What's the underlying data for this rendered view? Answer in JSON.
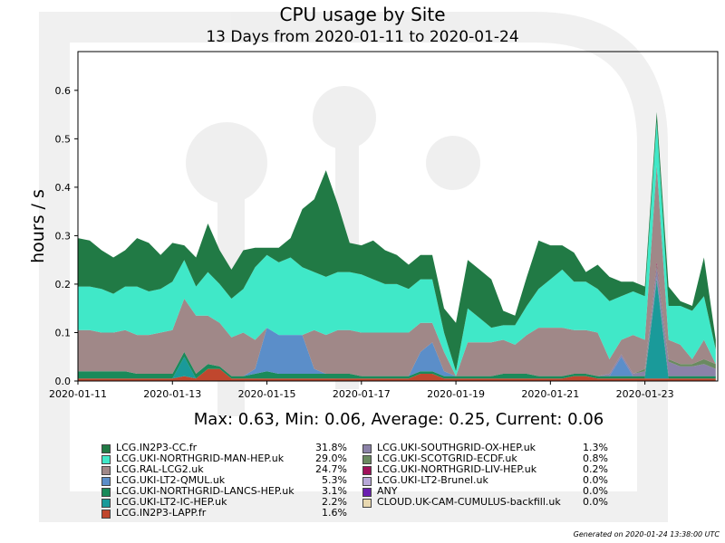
{
  "header": {
    "title": "CPU usage by Site",
    "subtitle": "13 Days from 2020-01-11 to 2020-01-24"
  },
  "stats_text": "Max: 0.63, Min: 0.06, Average: 0.25, Current: 0.06",
  "footer": "Generated on 2020-01-24 13:38:00 UTC",
  "chart_data": {
    "type": "area",
    "stacked": true,
    "title": "CPU usage by Site",
    "subtitle": "13 Days from 2020-01-11 to 2020-01-24",
    "ylabel": "hours / s",
    "xlabel": "",
    "ylim": [
      0,
      0.68
    ],
    "yticks": [
      "0.0",
      "0.1",
      "0.2",
      "0.3",
      "0.4",
      "0.5",
      "0.6"
    ],
    "xlim": [
      "2020-01-11 00:00",
      "2020-01-24 13:00"
    ],
    "xticks": [
      "2020-01-11",
      "2020-01-13",
      "2020-01-15",
      "2020-01-17",
      "2020-01-19",
      "2020-01-21",
      "2020-01-23"
    ],
    "grid": false,
    "legend_position": "bottom",
    "x": [
      "2020-01-11 00:00",
      "2020-01-11 06:00",
      "2020-01-11 12:00",
      "2020-01-11 18:00",
      "2020-01-12 00:00",
      "2020-01-12 06:00",
      "2020-01-12 12:00",
      "2020-01-12 18:00",
      "2020-01-13 00:00",
      "2020-01-13 06:00",
      "2020-01-13 12:00",
      "2020-01-13 18:00",
      "2020-01-14 00:00",
      "2020-01-14 06:00",
      "2020-01-14 12:00",
      "2020-01-14 18:00",
      "2020-01-15 00:00",
      "2020-01-15 06:00",
      "2020-01-15 12:00",
      "2020-01-15 18:00",
      "2020-01-16 00:00",
      "2020-01-16 06:00",
      "2020-01-16 12:00",
      "2020-01-16 18:00",
      "2020-01-17 00:00",
      "2020-01-17 06:00",
      "2020-01-17 12:00",
      "2020-01-17 18:00",
      "2020-01-18 00:00",
      "2020-01-18 06:00",
      "2020-01-18 12:00",
      "2020-01-18 18:00",
      "2020-01-19 00:00",
      "2020-01-19 06:00",
      "2020-01-19 12:00",
      "2020-01-19 18:00",
      "2020-01-20 00:00",
      "2020-01-20 06:00",
      "2020-01-20 12:00",
      "2020-01-20 18:00",
      "2020-01-21 00:00",
      "2020-01-21 06:00",
      "2020-01-21 12:00",
      "2020-01-21 18:00",
      "2020-01-22 00:00",
      "2020-01-22 06:00",
      "2020-01-22 12:00",
      "2020-01-22 18:00",
      "2020-01-23 00:00",
      "2020-01-23 06:00",
      "2020-01-23 12:00",
      "2020-01-23 18:00",
      "2020-01-24 00:00",
      "2020-01-24 06:00",
      "2020-01-24 12:00"
    ],
    "series": [
      {
        "name": "LCG.IN2P3-LAPP.fr",
        "color": "#c0472e",
        "percent": "1.6%",
        "values": [
          0.005,
          0.005,
          0.005,
          0.005,
          0.005,
          0.005,
          0.005,
          0.005,
          0.005,
          0.01,
          0.005,
          0.025,
          0.025,
          0.005,
          0.005,
          0.005,
          0.005,
          0.005,
          0.005,
          0.005,
          0.005,
          0.005,
          0.005,
          0.005,
          0.005,
          0.005,
          0.005,
          0.005,
          0.005,
          0.015,
          0.015,
          0.005,
          0.005,
          0.005,
          0.005,
          0.005,
          0.005,
          0.005,
          0.005,
          0.005,
          0.005,
          0.005,
          0.01,
          0.01,
          0.005,
          0.005,
          0.005,
          0.005,
          0.005,
          0.005,
          0.005,
          0.005,
          0.005,
          0.005,
          0.005
        ]
      },
      {
        "name": "LCG.UKI-LT2-IC-HEP.uk",
        "color": "#1a9a9a",
        "percent": "2.2%",
        "values": [
          0,
          0,
          0,
          0,
          0,
          0,
          0,
          0,
          0,
          0.04,
          0,
          0,
          0,
          0,
          0,
          0,
          0,
          0,
          0,
          0,
          0,
          0,
          0,
          0,
          0,
          0,
          0,
          0,
          0,
          0,
          0,
          0,
          0,
          0,
          0,
          0,
          0,
          0,
          0,
          0,
          0,
          0,
          0,
          0,
          0,
          0,
          0,
          0,
          0,
          0.2,
          0,
          0,
          0,
          0,
          0
        ]
      },
      {
        "name": "LCG.UKI-NORTHGRID-LANCS-HEP.uk",
        "color": "#1a8a5a",
        "percent": "3.1%",
        "values": [
          0.015,
          0.015,
          0.015,
          0.015,
          0.015,
          0.01,
          0.01,
          0.01,
          0.01,
          0.01,
          0.01,
          0.01,
          0.005,
          0.005,
          0.005,
          0.01,
          0.015,
          0.01,
          0.01,
          0.01,
          0.01,
          0.01,
          0.01,
          0.01,
          0.005,
          0.005,
          0.005,
          0.005,
          0.005,
          0.005,
          0.005,
          0.005,
          0.005,
          0.005,
          0.005,
          0.005,
          0.01,
          0.01,
          0.01,
          0.005,
          0.005,
          0.005,
          0.005,
          0.005,
          0.005,
          0.005,
          0.005,
          0.005,
          0.005,
          0.005,
          0.005,
          0.005,
          0.005,
          0.005,
          0.005
        ]
      },
      {
        "name": "LCG.UKI-LT2-QMUL.uk",
        "color": "#5b8ec9",
        "percent": "5.3%",
        "values": [
          0,
          0,
          0,
          0,
          0,
          0,
          0,
          0,
          0,
          0,
          0,
          0,
          0,
          0,
          0,
          0.01,
          0.09,
          0.08,
          0.08,
          0.08,
          0.01,
          0,
          0,
          0,
          0,
          0,
          0,
          0,
          0,
          0.04,
          0.06,
          0.01,
          0,
          0,
          0,
          0,
          0,
          0,
          0,
          0,
          0,
          0,
          0,
          0,
          0,
          0,
          0.04,
          0,
          0,
          0.005,
          0,
          0,
          0,
          0,
          0
        ]
      },
      {
        "name": "LCG.UKI-SOUTHGRID-OX-HEP.uk",
        "color": "#8b82a8",
        "percent": "1.3%",
        "values": [
          0,
          0,
          0,
          0,
          0,
          0,
          0,
          0,
          0,
          0,
          0,
          0,
          0,
          0,
          0,
          0,
          0,
          0,
          0,
          0,
          0,
          0,
          0,
          0,
          0,
          0,
          0,
          0,
          0,
          0,
          0,
          0,
          0,
          0,
          0,
          0,
          0,
          0,
          0,
          0,
          0,
          0,
          0,
          0,
          0,
          0.005,
          0.005,
          0.005,
          0.01,
          0.02,
          0.03,
          0.02,
          0.02,
          0.025,
          0.015
        ]
      },
      {
        "name": "LCG.UKI-SCOTGRID-ECDF.uk",
        "color": "#6a8a60",
        "percent": "0.8%",
        "values": [
          0,
          0,
          0,
          0,
          0,
          0,
          0,
          0,
          0,
          0,
          0,
          0,
          0,
          0,
          0,
          0,
          0,
          0,
          0,
          0,
          0,
          0,
          0,
          0,
          0,
          0,
          0,
          0,
          0,
          0,
          0,
          0,
          0,
          0,
          0,
          0,
          0,
          0,
          0,
          0,
          0,
          0,
          0,
          0,
          0,
          0,
          0,
          0,
          0.005,
          0.005,
          0.005,
          0.005,
          0.005,
          0.01,
          0.01
        ]
      },
      {
        "name": "LCG.UKI-NORTHGRID-LIV-HEP.uk",
        "color": "#a0105a",
        "percent": "0.2%",
        "values": [
          0,
          0,
          0,
          0,
          0,
          0,
          0,
          0,
          0,
          0,
          0,
          0,
          0,
          0,
          0,
          0,
          0,
          0,
          0,
          0,
          0,
          0,
          0,
          0,
          0,
          0,
          0,
          0,
          0,
          0,
          0,
          0,
          0,
          0,
          0,
          0,
          0,
          0,
          0,
          0,
          0,
          0,
          0,
          0,
          0,
          0,
          0,
          0,
          0,
          0.005,
          0,
          0,
          0,
          0,
          0
        ]
      },
      {
        "name": "LCG.UKI-LT2-Brunel.uk",
        "color": "#b8a8d8",
        "percent": "0.0%",
        "values": [
          0,
          0,
          0,
          0,
          0,
          0,
          0,
          0,
          0,
          0,
          0,
          0,
          0,
          0,
          0,
          0,
          0,
          0,
          0,
          0,
          0,
          0,
          0,
          0,
          0,
          0,
          0,
          0,
          0,
          0,
          0,
          0,
          0,
          0,
          0,
          0,
          0,
          0,
          0,
          0,
          0,
          0,
          0,
          0,
          0,
          0,
          0,
          0,
          0,
          0,
          0,
          0,
          0,
          0,
          0
        ]
      },
      {
        "name": "ANY",
        "color": "#6a1fb0",
        "percent": "0.0%",
        "values": [
          0,
          0,
          0,
          0,
          0,
          0,
          0,
          0,
          0,
          0,
          0,
          0,
          0,
          0,
          0,
          0,
          0,
          0,
          0,
          0,
          0,
          0,
          0,
          0,
          0,
          0,
          0,
          0,
          0,
          0,
          0,
          0,
          0,
          0,
          0,
          0,
          0,
          0,
          0,
          0,
          0,
          0,
          0,
          0,
          0,
          0,
          0,
          0,
          0,
          0,
          0,
          0,
          0,
          0,
          0
        ]
      },
      {
        "name": "CLOUD.UK-CAM-CUMULUS-backfill.uk",
        "color": "#e8d8b0",
        "percent": "0.0%",
        "values": [
          0,
          0,
          0,
          0,
          0,
          0,
          0,
          0,
          0,
          0,
          0,
          0,
          0,
          0,
          0,
          0,
          0,
          0,
          0,
          0,
          0,
          0,
          0,
          0,
          0,
          0,
          0,
          0,
          0,
          0,
          0,
          0,
          0,
          0,
          0,
          0,
          0,
          0,
          0,
          0,
          0,
          0,
          0,
          0,
          0,
          0,
          0,
          0,
          0,
          0,
          0,
          0,
          0,
          0,
          0
        ]
      },
      {
        "name": "LCG.RAL-LCG2.uk",
        "color": "#a08888",
        "percent": "24.7%",
        "values": [
          0.085,
          0.085,
          0.08,
          0.08,
          0.085,
          0.08,
          0.08,
          0.085,
          0.09,
          0.11,
          0.12,
          0.1,
          0.09,
          0.08,
          0.09,
          0.06,
          0,
          0,
          0,
          0,
          0.08,
          0.08,
          0.09,
          0.09,
          0.09,
          0.09,
          0.09,
          0.09,
          0.09,
          0.06,
          0.04,
          0.04,
          0,
          0.07,
          0.07,
          0.07,
          0.07,
          0.06,
          0.08,
          0.1,
          0.1,
          0.1,
          0.09,
          0.09,
          0.09,
          0.03,
          0.03,
          0.08,
          0.06,
          0.2,
          0.04,
          0.04,
          0.01,
          0.04,
          0
        ]
      },
      {
        "name": "LCG.UKI-NORTHGRID-MAN-HEP.uk",
        "color": "#40e8c8",
        "percent": "29.0%",
        "values": [
          0.09,
          0.09,
          0.09,
          0.08,
          0.09,
          0.1,
          0.09,
          0.09,
          0.1,
          0.08,
          0.06,
          0.09,
          0.08,
          0.08,
          0.09,
          0.15,
          0.15,
          0.15,
          0.16,
          0.14,
          0.12,
          0.12,
          0.12,
          0.12,
          0.12,
          0.11,
          0.1,
          0.1,
          0.09,
          0.09,
          0.09,
          0.04,
          0.01,
          0.07,
          0.05,
          0.03,
          0.03,
          0.04,
          0.06,
          0.08,
          0.1,
          0.12,
          0.1,
          0.1,
          0.09,
          0.12,
          0.09,
          0.09,
          0.09,
          0.09,
          0.07,
          0.08,
          0.1,
          0.09,
          0.03
        ]
      },
      {
        "name": "LCG.IN2P3-CC.fr",
        "color": "#217a45",
        "percent": "31.8%",
        "values": [
          0.1,
          0.095,
          0.08,
          0.075,
          0.075,
          0.1,
          0.1,
          0.07,
          0.08,
          0.03,
          0.06,
          0.1,
          0.07,
          0.06,
          0.08,
          0.04,
          0.015,
          0.03,
          0.04,
          0.12,
          0.15,
          0.22,
          0.14,
          0.06,
          0.06,
          0.08,
          0.07,
          0.06,
          0.05,
          0.05,
          0.05,
          0.05,
          0.1,
          0.1,
          0.1,
          0.1,
          0.03,
          0.02,
          0.06,
          0.1,
          0.07,
          0.05,
          0.06,
          0.02,
          0.05,
          0.05,
          0.03,
          0.02,
          0.02,
          0.02,
          0.04,
          0.01,
          0.01,
          0.08,
          0.02
        ]
      }
    ]
  }
}
